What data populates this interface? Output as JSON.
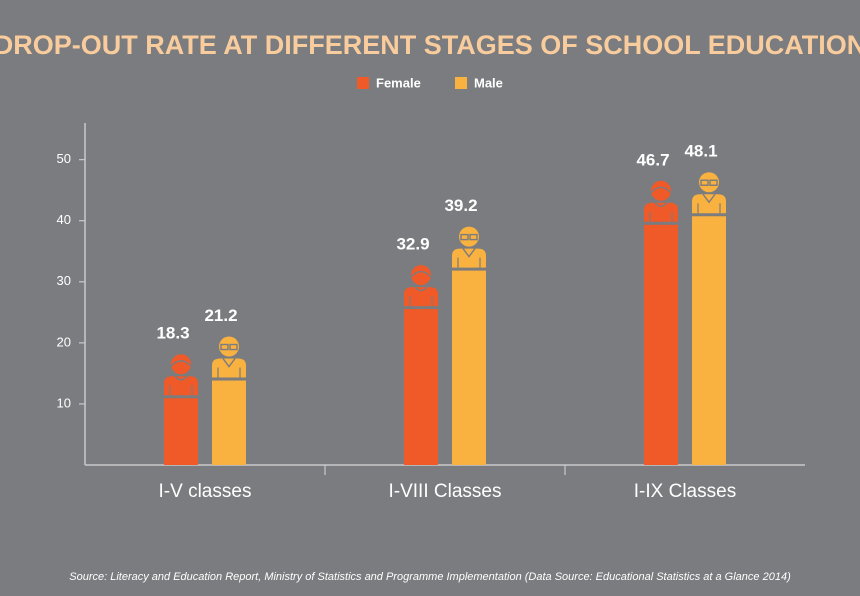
{
  "chart_data": {
    "type": "bar",
    "title": "DROP-OUT RATE AT DIFFERENT STAGES OF SCHOOL EDUCATION",
    "categories": [
      "I-V classes",
      "I-VIII Classes",
      "I-IX Classes"
    ],
    "series": [
      {
        "name": "Female",
        "color": "#ef5a28",
        "values": [
          18.3,
          32.9,
          46.7
        ]
      },
      {
        "name": "Male",
        "color": "#f9b13f",
        "values": [
          21.2,
          39.2,
          48.1
        ]
      }
    ],
    "ylim": [
      0,
      56
    ],
    "yticks": [
      10,
      20,
      30,
      40,
      50
    ],
    "source": "Source: Literacy and Education Report, Ministry of Statistics and Programme Implementation (Data Source: Educational Statistics at a Glance 2014)"
  }
}
